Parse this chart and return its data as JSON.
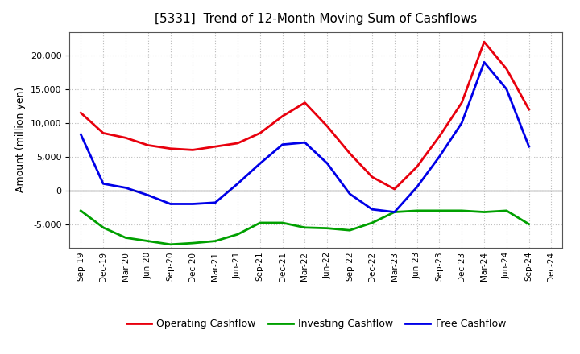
{
  "title": "[5331]  Trend of 12-Month Moving Sum of Cashflows",
  "ylabel": "Amount (million yen)",
  "x_labels": [
    "Sep-19",
    "Dec-19",
    "Mar-20",
    "Jun-20",
    "Sep-20",
    "Dec-20",
    "Mar-21",
    "Jun-21",
    "Sep-21",
    "Dec-21",
    "Mar-22",
    "Jun-22",
    "Sep-22",
    "Dec-22",
    "Mar-23",
    "Jun-23",
    "Sep-23",
    "Dec-23",
    "Mar-24",
    "Jun-24",
    "Sep-24",
    "Dec-24"
  ],
  "operating": [
    11500,
    8500,
    7800,
    6700,
    6200,
    6000,
    6500,
    7000,
    8500,
    11000,
    13000,
    9500,
    5500,
    2000,
    200,
    3500,
    8000,
    13000,
    22000,
    18000,
    12000,
    null
  ],
  "investing": [
    -3000,
    -5500,
    -7000,
    -7500,
    -8000,
    -7800,
    -7500,
    -6500,
    -4800,
    -4800,
    -5500,
    -5600,
    -5900,
    -4800,
    -3200,
    -3000,
    -3000,
    -3000,
    -3200,
    -3000,
    -5000,
    null
  ],
  "free": [
    8300,
    1000,
    400,
    -700,
    -2000,
    -2000,
    -1800,
    1000,
    4000,
    6800,
    7100,
    4000,
    -500,
    -2800,
    -3200,
    500,
    5000,
    10000,
    19000,
    15000,
    6500,
    null
  ],
  "operating_color": "#e8000d",
  "investing_color": "#00a000",
  "free_color": "#0000e8",
  "ylim": [
    -8500,
    23500
  ],
  "yticks": [
    -5000,
    0,
    5000,
    10000,
    15000,
    20000
  ],
  "background_color": "#ffffff",
  "grid_color": "#aaaaaa",
  "legend_labels": [
    "Operating Cashflow",
    "Investing Cashflow",
    "Free Cashflow"
  ]
}
